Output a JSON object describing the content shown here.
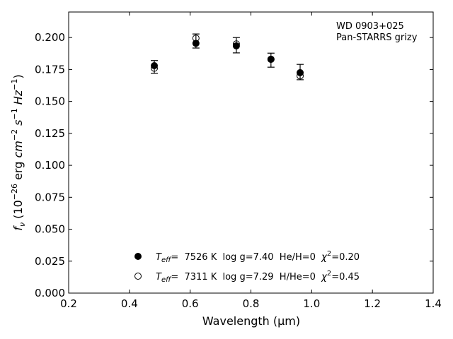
{
  "chart_data": {
    "type": "scatter",
    "xlabel": "Wavelength (μm)",
    "ylabel": "f_ν (10^−26 erg cm^−2 s^−1 Hz^−1)",
    "xlim": [
      0.2,
      1.4
    ],
    "ylim": [
      0.0,
      0.22
    ],
    "x_ticks": [
      "0.2",
      "0.4",
      "0.6",
      "0.8",
      "1.0",
      "1.2",
      "1.4"
    ],
    "y_ticks": [
      "0.000",
      "0.025",
      "0.050",
      "0.075",
      "0.100",
      "0.125",
      "0.150",
      "0.175",
      "0.200"
    ],
    "grid": false,
    "annotation": [
      "WD 0903+025",
      "Pan-STARRS grizy"
    ],
    "observed": {
      "x": [
        0.482,
        0.619,
        0.752,
        0.866,
        0.962
      ],
      "y": [
        0.177,
        0.1973,
        0.194,
        0.1823,
        0.173
      ],
      "yerr": [
        0.005,
        0.0055,
        0.006,
        0.0055,
        0.006
      ]
    },
    "series": [
      {
        "name": "T_eff=  7526 K  log g=7.40  He/H=0  χ²=0.20",
        "marker": "filled",
        "x": [
          0.482,
          0.619,
          0.752,
          0.866,
          0.962
        ],
        "y": [
          0.178,
          0.1955,
          0.1935,
          0.183,
          0.1725
        ]
      },
      {
        "name": "T_eff=  7311 K  log g=7.29  H/He=0  χ²=0.45",
        "marker": "open",
        "x": [
          0.482,
          0.619,
          0.752,
          0.866,
          0.962
        ],
        "y": [
          0.176,
          0.1995,
          0.195,
          0.183,
          0.17
        ]
      }
    ],
    "legend_position": "bottom-center"
  },
  "legend": {
    "entry1": {
      "prefix": "T",
      "sub": "eff",
      "text": "=  7526 K  log g=7.40  He/H=0  ",
      "chi": "χ",
      "sup": "2",
      "tail": "=0.20"
    },
    "entry2": {
      "prefix": "T",
      "sub": "eff",
      "text": "=  7311 K  log g=7.29  H/He=0  ",
      "chi": "χ",
      "sup": "2",
      "tail": "=0.45"
    }
  },
  "ylabel_parts": {
    "f": "f",
    "nu": "ν",
    "open": " (10",
    "e26": "−26",
    "erg": " erg ",
    "cm": "cm",
    "e2": "−2",
    "s": " s",
    "e1": "−1",
    "hz": " Hz",
    "e1b": "−1",
    "close": ")"
  }
}
